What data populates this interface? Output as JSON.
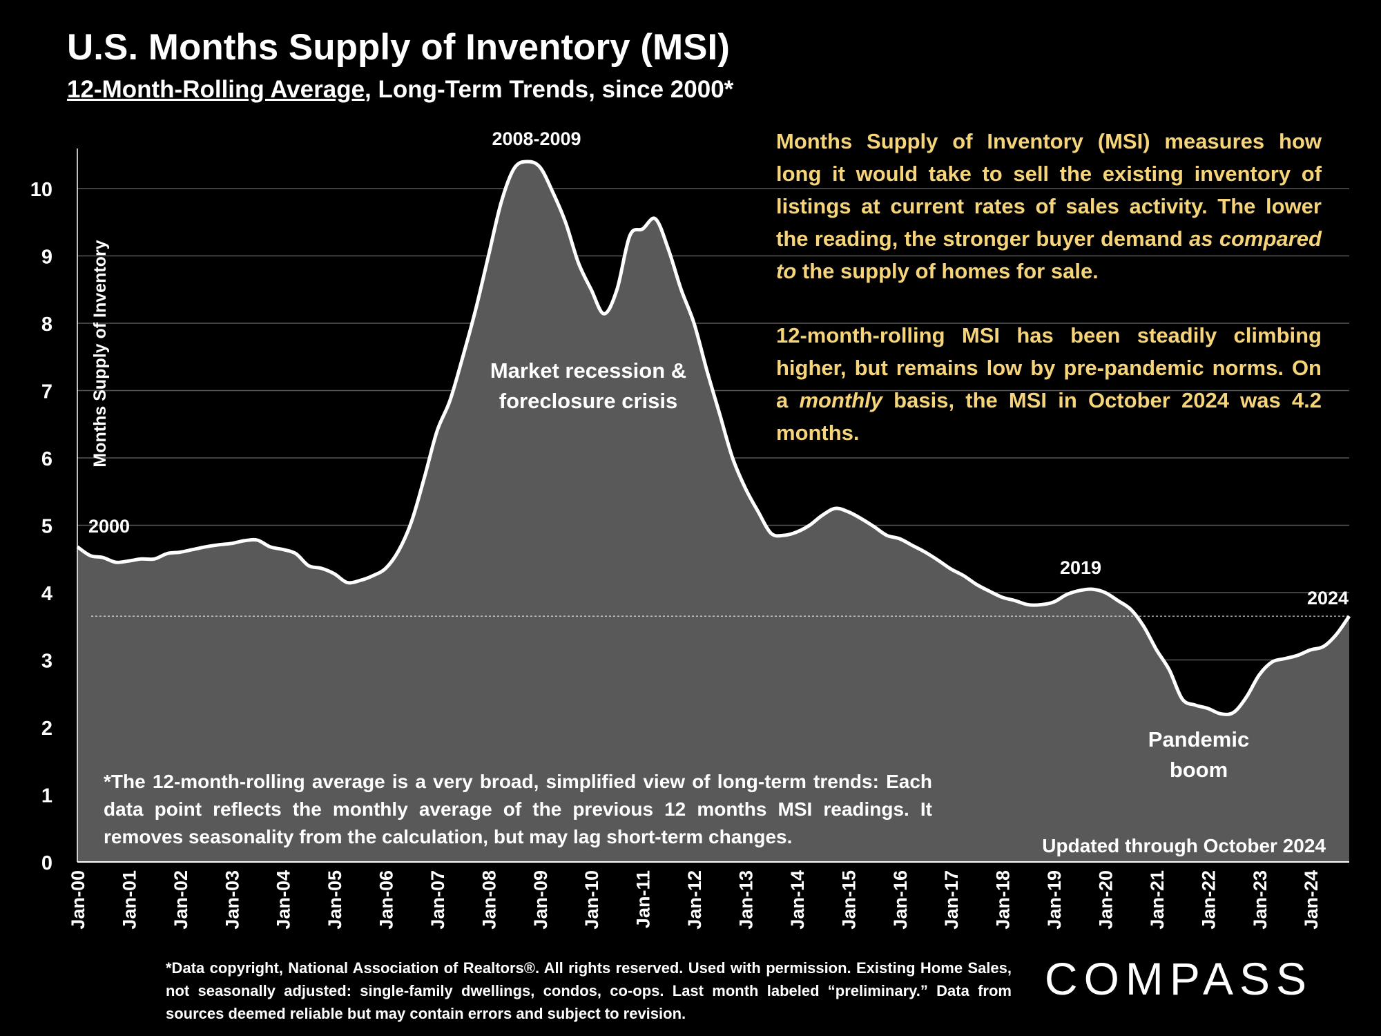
{
  "title": "U.S. Months Supply of Inventory (MSI)",
  "subtitle_underlined": "12-Month-Rolling Average",
  "subtitle_rest": ", Long-Term Trends, since 2000*",
  "info_paragraph_1": {
    "part1": "Months Supply of Inventory (MSI) measures how long it would take to sell the existing inventory of listings at current rates of sales activity. The lower the reading, the stronger buyer demand ",
    "italic1": "as compared to",
    "part2": " the supply of homes for sale."
  },
  "info_paragraph_2": {
    "part1": "12-month-rolling MSI has been steadily climbing higher, but remains low by pre-pandemic norms. On a ",
    "italic1": "monthly",
    "part2": " basis, the MSI in October 2024 was 4.2 months."
  },
  "rolling_average_note": "*The 12-month-rolling average is a very broad, simplified view of long-term trends: Each data point reflects the monthly average of the previous 12 months MSI readings. It removes seasonality from the calculation, but may lag short-term changes.",
  "updated_note": "Updated through October 2024",
  "footer_note": "*Data copyright, National Association of Realtors®. All rights reserved. Used with permission. Existing Home Sales, not seasonally adjusted: single-family dwellings, condos, co-ops. Last month labeled “preliminary.” Data from sources deemed reliable but may contain errors and subject to revision.",
  "logo_text": "COMPASS",
  "colors": {
    "background": "#000000",
    "area_fill": "#595959",
    "line": "#ffffff",
    "info_text": "#f6d57a",
    "gridline": "#595959"
  },
  "chart_data": {
    "type": "area",
    "ylabel": "Months Supply of Inventory",
    "xlabel": "",
    "ylim": [
      0,
      10.5
    ],
    "yticks": [
      0,
      1,
      2,
      3,
      4,
      5,
      6,
      7,
      8,
      9,
      10
    ],
    "grid": "horizontal",
    "xtick_labels": [
      "Jan-00",
      "Jan-01",
      "Jan-02",
      "Jan-03",
      "Jan-04",
      "Jan-05",
      "Jan-06",
      "Jan-07",
      "Jan-08",
      "Jan-09",
      "Jan-10",
      "Jan-11",
      "Jan-12",
      "Jan-13",
      "Jan-14",
      "Jan-15",
      "Jan-16",
      "Jan-17",
      "Jan-18",
      "Jan-19",
      "Jan-20",
      "Jan-21",
      "Jan-22",
      "Jan-23",
      "Jan-24"
    ],
    "reference_line": 3.65,
    "series": [
      {
        "x": [
          "2000-01",
          "2000-04",
          "2000-07",
          "2000-10",
          "2001-01",
          "2001-04",
          "2001-07",
          "2001-10",
          "2002-01",
          "2002-04",
          "2002-07",
          "2002-10",
          "2003-01",
          "2003-04",
          "2003-07",
          "2003-10",
          "2004-01",
          "2004-04",
          "2004-07",
          "2004-10",
          "2005-01",
          "2005-04",
          "2005-07",
          "2005-10",
          "2006-01",
          "2006-04",
          "2006-07",
          "2006-10",
          "2007-01",
          "2007-04",
          "2007-07",
          "2007-10",
          "2008-01",
          "2008-04",
          "2008-07",
          "2008-10",
          "2009-01",
          "2009-04",
          "2009-07",
          "2009-10",
          "2010-01",
          "2010-04",
          "2010-07",
          "2010-10",
          "2011-01",
          "2011-04",
          "2011-07",
          "2011-10",
          "2012-01",
          "2012-04",
          "2012-07",
          "2012-10",
          "2013-01",
          "2013-04",
          "2013-07",
          "2013-10",
          "2014-01",
          "2014-04",
          "2014-07",
          "2014-10",
          "2015-01",
          "2015-04",
          "2015-07",
          "2015-10",
          "2016-01",
          "2016-04",
          "2016-07",
          "2016-10",
          "2017-01",
          "2017-04",
          "2017-07",
          "2017-10",
          "2018-01",
          "2018-04",
          "2018-07",
          "2018-10",
          "2019-01",
          "2019-04",
          "2019-07",
          "2019-10",
          "2020-01",
          "2020-04",
          "2020-07",
          "2020-10",
          "2021-01",
          "2021-04",
          "2021-07",
          "2021-10",
          "2022-01",
          "2022-04",
          "2022-07",
          "2022-10",
          "2023-01",
          "2023-04",
          "2023-07",
          "2023-10",
          "2024-01",
          "2024-04",
          "2024-07",
          "2024-10"
        ],
        "y": [
          4.68,
          4.55,
          4.52,
          4.45,
          4.47,
          4.5,
          4.5,
          4.58,
          4.6,
          4.64,
          4.68,
          4.71,
          4.73,
          4.77,
          4.78,
          4.68,
          4.64,
          4.58,
          4.4,
          4.36,
          4.28,
          4.15,
          4.18,
          4.25,
          4.36,
          4.62,
          5.05,
          5.7,
          6.4,
          6.85,
          7.5,
          8.2,
          9.0,
          9.8,
          10.3,
          10.4,
          10.32,
          9.95,
          9.5,
          8.9,
          8.5,
          8.14,
          8.5,
          9.3,
          9.4,
          9.55,
          9.1,
          8.5,
          8.0,
          7.3,
          6.65,
          6.0,
          5.55,
          5.2,
          4.88,
          4.85,
          4.9,
          5.0,
          5.15,
          5.25,
          5.2,
          5.1,
          4.98,
          4.85,
          4.8,
          4.7,
          4.6,
          4.48,
          4.35,
          4.25,
          4.12,
          4.02,
          3.93,
          3.88,
          3.82,
          3.82,
          3.86,
          3.97,
          4.03,
          4.05,
          4.0,
          3.88,
          3.75,
          3.5,
          3.15,
          2.85,
          2.42,
          2.33,
          2.28,
          2.2,
          2.22,
          2.45,
          2.78,
          2.97,
          3.02,
          3.07,
          3.15,
          3.2,
          3.38,
          3.65
        ]
      }
    ],
    "annotations": [
      {
        "text": "2000"
      },
      {
        "text": "2008-2009"
      },
      {
        "text": "Market recession &"
      },
      {
        "text": "foreclosure crisis"
      },
      {
        "text": "2019"
      },
      {
        "text": "2024"
      },
      {
        "text": "Pandemic"
      },
      {
        "text": "boom"
      }
    ]
  }
}
